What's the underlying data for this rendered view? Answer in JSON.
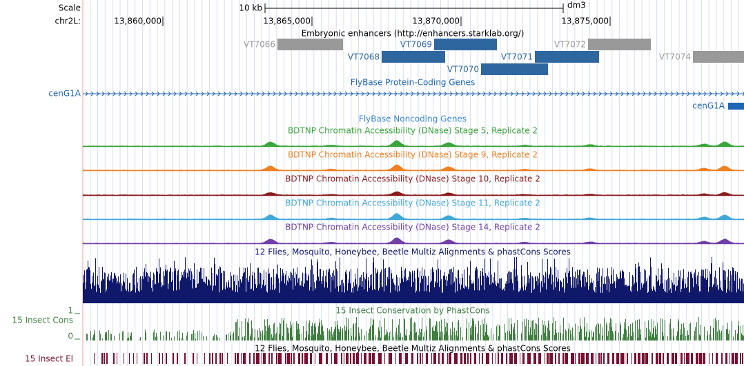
{
  "ruler": {
    "scale": "Scale",
    "scale_size": "10 kb",
    "assembly": "dm3",
    "chrom": "chr2L:",
    "positions": [
      "13,860,000",
      "13,865,000",
      "13,870,000",
      "13,875,000"
    ]
  },
  "enhancers": {
    "title": "Embryonic enhancers (http://enhancers.starklab.org/)",
    "items": [
      {
        "name": "VT7066",
        "color": "#999999"
      },
      {
        "name": "VT7069",
        "color": "#2e67a0"
      },
      {
        "name": "VT7072",
        "color": "#999999"
      },
      {
        "name": "VT7068",
        "color": "#2e67a0"
      },
      {
        "name": "VT7071",
        "color": "#2e67a0"
      },
      {
        "name": "VT7074",
        "color": "#999999"
      },
      {
        "name": "VT7070",
        "color": "#2e67a0"
      }
    ]
  },
  "genes": {
    "title": "FlyBase Protein-Coding Genes",
    "gene_left": "cenG1A",
    "gene_right": "cenG1A",
    "color": "#1c64b4"
  },
  "noncoding": {
    "title": "FlyBase Noncoding Genes"
  },
  "dnase": [
    {
      "title": "BDTNP Chromatin Accessibility (DNase) Stage 5, Replicate 2",
      "color": "#3aa53a"
    },
    {
      "title": "BDTNP Chromatin Accessibility (DNase) Stage 9, Replicate 2",
      "color": "#f08020"
    },
    {
      "title": "BDTNP Chromatin Accessibility (DNase) Stage 10, Replicate 2",
      "color": "#8b1a1a"
    },
    {
      "title": "BDTNP Chromatin Accessibility (DNase) Stage 11, Replicate 2",
      "color": "#40a8d8"
    },
    {
      "title": "BDTNP Chromatin Accessibility (DNase) Stage 14, Replicate 2",
      "color": "#7040a8"
    }
  ],
  "multiz": {
    "title": "12 Flies, Mosquito, Honeybee, Beetle Multiz Alignments & phastCons Scores",
    "color": "#10186a"
  },
  "cons": {
    "title": "15 Insect Conservation by PhastCons",
    "label": "15 Insect Cons",
    "top": "1",
    "bottom": "0",
    "color": "#3f7f3f"
  },
  "elements": {
    "title": "12 Flies, Mosquito, Honeybee, Beetle Multiz Alignments & phastCons Scores",
    "label": "15 Insect El",
    "color": "#7a1030"
  }
}
